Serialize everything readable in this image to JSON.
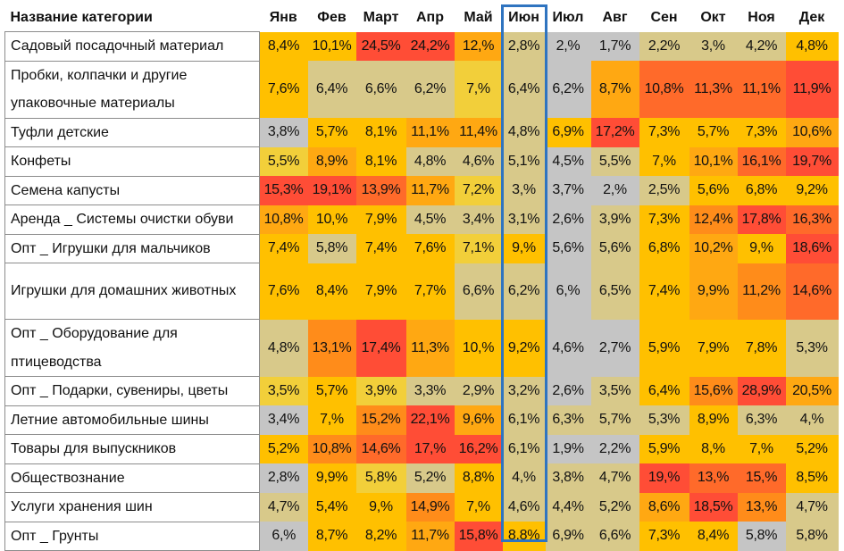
{
  "header": {
    "category": "Название категории",
    "months": [
      "Янв",
      "Фев",
      "Март",
      "Апр",
      "Май",
      "Июн",
      "Июл",
      "Авг",
      "Сен",
      "Окт",
      "Ноя",
      "Дек"
    ]
  },
  "highlighted_month_index": 5,
  "colors": {
    "gray": "#c5c5c5",
    "tan": "#d8c98a",
    "yellow_light": "#f2cf3a",
    "yellow": "#ffc000",
    "orange_light": "#ffa812",
    "orange": "#ff8c1a",
    "orange_red": "#ff6a2a",
    "red": "#ff4d36",
    "highlight_border": "#2f74c0"
  },
  "rows": [
    {
      "name": "Садовый посадочный материал",
      "lines": 1,
      "values": [
        "8,4%",
        "10,1%",
        "24,5%",
        "24,2%",
        "12,%",
        "2,8%",
        "2,%",
        "1,7%",
        "2,2%",
        "3,%",
        "4,2%",
        "4,8%"
      ],
      "colors": [
        "yellow",
        "yellow",
        "red",
        "red",
        "orange_light",
        "tan",
        "gray",
        "gray",
        "tan",
        "tan",
        "tan",
        "yellow"
      ]
    },
    {
      "name": "Пробки, колпачки и другие упаковочные материалы",
      "lines": 2,
      "values": [
        "7,6%",
        "6,4%",
        "6,6%",
        "6,2%",
        "7,%",
        "6,4%",
        "6,2%",
        "8,7%",
        "10,8%",
        "11,3%",
        "11,1%",
        "11,9%"
      ],
      "colors": [
        "yellow",
        "tan",
        "tan",
        "tan",
        "yellow_light",
        "tan",
        "gray",
        "orange_light",
        "orange_red",
        "orange_red",
        "orange_red",
        "red"
      ]
    },
    {
      "name": "Туфли детские",
      "lines": 1,
      "values": [
        "3,8%",
        "5,7%",
        "8,1%",
        "11,1%",
        "11,4%",
        "4,8%",
        "6,9%",
        "17,2%",
        "7,3%",
        "5,7%",
        "7,3%",
        "10,6%"
      ],
      "colors": [
        "gray",
        "yellow",
        "yellow",
        "orange_light",
        "orange_light",
        "tan",
        "yellow",
        "red",
        "yellow",
        "yellow",
        "yellow",
        "orange_light"
      ]
    },
    {
      "name": "Конфеты",
      "lines": 1,
      "values": [
        "5,5%",
        "8,9%",
        "8,1%",
        "4,8%",
        "4,6%",
        "5,1%",
        "4,5%",
        "5,5%",
        "7,%",
        "10,1%",
        "16,1%",
        "19,7%"
      ],
      "colors": [
        "yellow_light",
        "orange_light",
        "yellow",
        "tan",
        "tan",
        "tan",
        "gray",
        "tan",
        "yellow",
        "orange_light",
        "orange_red",
        "red"
      ]
    },
    {
      "name": "Семена капусты",
      "lines": 1,
      "values": [
        "15,3%",
        "19,1%",
        "13,9%",
        "11,7%",
        "7,2%",
        "3,%",
        "3,7%",
        "2,%",
        "2,5%",
        "5,6%",
        "6,8%",
        "9,2%"
      ],
      "colors": [
        "red",
        "red",
        "orange_red",
        "orange_light",
        "yellow_light",
        "tan",
        "gray",
        "gray",
        "tan",
        "yellow",
        "yellow",
        "yellow"
      ]
    },
    {
      "name": "Аренда _ Системы очистки обуви",
      "lines": 1,
      "values": [
        "10,8%",
        "10,%",
        "7,9%",
        "4,5%",
        "3,4%",
        "3,1%",
        "2,6%",
        "3,9%",
        "7,3%",
        "12,4%",
        "17,8%",
        "16,3%"
      ],
      "colors": [
        "orange_light",
        "yellow",
        "yellow",
        "tan",
        "tan",
        "tan",
        "gray",
        "tan",
        "yellow",
        "orange",
        "red",
        "orange_red"
      ]
    },
    {
      "name": "Опт _ Игрушки для мальчиков",
      "lines": 1,
      "values": [
        "7,4%",
        "5,8%",
        "7,4%",
        "7,6%",
        "7,1%",
        "9,%",
        "5,6%",
        "5,6%",
        "6,8%",
        "10,2%",
        "9,%",
        "18,6%"
      ],
      "colors": [
        "yellow",
        "tan",
        "yellow",
        "yellow",
        "yellow_light",
        "yellow",
        "gray",
        "tan",
        "yellow",
        "orange_light",
        "yellow",
        "red"
      ]
    },
    {
      "name": "Игрушки для домашних животных",
      "lines": 2,
      "values": [
        "7,6%",
        "8,4%",
        "7,9%",
        "7,7%",
        "6,6%",
        "6,2%",
        "6,%",
        "6,5%",
        "7,4%",
        "9,9%",
        "11,2%",
        "14,6%"
      ],
      "colors": [
        "yellow",
        "yellow",
        "yellow",
        "yellow",
        "tan",
        "tan",
        "gray",
        "tan",
        "yellow",
        "orange_light",
        "orange",
        "orange_red"
      ]
    },
    {
      "name": "Опт _ Оборудование для птицеводства",
      "lines": 2,
      "values": [
        "4,8%",
        "13,1%",
        "17,4%",
        "11,3%",
        "10,%",
        "9,2%",
        "4,6%",
        "2,7%",
        "5,9%",
        "7,9%",
        "7,8%",
        "5,3%"
      ],
      "colors": [
        "tan",
        "orange",
        "red",
        "orange_light",
        "yellow",
        "yellow",
        "gray",
        "gray",
        "yellow",
        "yellow",
        "yellow",
        "tan"
      ]
    },
    {
      "name": "Опт _ Подарки, сувениры, цветы",
      "lines": 1,
      "values": [
        "3,5%",
        "5,7%",
        "3,9%",
        "3,3%",
        "2,9%",
        "3,2%",
        "2,6%",
        "3,5%",
        "6,4%",
        "15,6%",
        "28,9%",
        "20,5%"
      ],
      "colors": [
        "yellow_light",
        "yellow",
        "yellow_light",
        "tan",
        "tan",
        "tan",
        "gray",
        "tan",
        "yellow",
        "orange",
        "red",
        "orange_light"
      ]
    },
    {
      "name": "Летние автомобильные  шины",
      "lines": 1,
      "values": [
        "3,4%",
        "7,%",
        "15,2%",
        "22,1%",
        "9,6%",
        "6,1%",
        "6,3%",
        "5,7%",
        "5,3%",
        "8,9%",
        "6,3%",
        "4,%"
      ],
      "colors": [
        "gray",
        "yellow",
        "orange",
        "red",
        "orange_light",
        "tan",
        "tan",
        "tan",
        "tan",
        "yellow",
        "tan",
        "tan"
      ]
    },
    {
      "name": "Товары для выпускников",
      "lines": 1,
      "values": [
        "5,2%",
        "10,8%",
        "14,6%",
        "17,%",
        "16,2%",
        "6,1%",
        "1,9%",
        "2,2%",
        "5,9%",
        "8,%",
        "7,%",
        "5,2%"
      ],
      "colors": [
        "yellow",
        "orange",
        "orange_red",
        "red",
        "red",
        "tan",
        "gray",
        "gray",
        "yellow",
        "yellow",
        "yellow",
        "yellow"
      ]
    },
    {
      "name": "Обществознание",
      "lines": 1,
      "values": [
        "2,8%",
        "9,9%",
        "5,8%",
        "5,2%",
        "8,8%",
        "4,%",
        "3,8%",
        "4,7%",
        "19,%",
        "13,%",
        "15,%",
        "8,5%"
      ],
      "colors": [
        "gray",
        "yellow",
        "yellow_light",
        "tan",
        "yellow",
        "tan",
        "tan",
        "tan",
        "red",
        "orange_red",
        "orange_red",
        "yellow"
      ]
    },
    {
      "name": "Услуги хранения шин",
      "lines": 1,
      "values": [
        "4,7%",
        "5,4%",
        "9,%",
        "14,9%",
        "7,%",
        "4,6%",
        "4,4%",
        "5,2%",
        "8,6%",
        "18,5%",
        "13,%",
        "4,7%"
      ],
      "colors": [
        "tan",
        "yellow",
        "yellow",
        "orange",
        "yellow",
        "tan",
        "tan",
        "tan",
        "orange_light",
        "red",
        "orange",
        "tan"
      ]
    },
    {
      "name": "Опт _ Грунты",
      "lines": 1,
      "values": [
        "6,%",
        "8,7%",
        "8,2%",
        "11,7%",
        "15,8%",
        "8,8%",
        "6,9%",
        "6,6%",
        "7,3%",
        "8,4%",
        "5,8%",
        "5,8%"
      ],
      "colors": [
        "gray",
        "yellow",
        "yellow",
        "orange_light",
        "red",
        "yellow",
        "tan",
        "tan",
        "yellow",
        "yellow",
        "gray",
        "tan"
      ]
    }
  ]
}
